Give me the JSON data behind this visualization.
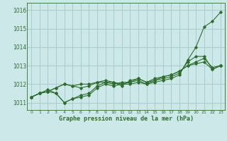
{
  "xlabel": "Graphe pression niveau de la mer (hPa)",
  "background_color": "#cce8e8",
  "grid_color": "#aacccc",
  "line_color": "#2d6e2d",
  "xlim": [
    -0.5,
    23.5
  ],
  "ylim": [
    1010.6,
    1016.4
  ],
  "yticks": [
    1011,
    1012,
    1013,
    1014,
    1015,
    1016
  ],
  "xticks": [
    0,
    1,
    2,
    3,
    4,
    5,
    6,
    7,
    8,
    9,
    10,
    11,
    12,
    13,
    14,
    15,
    16,
    17,
    18,
    19,
    20,
    21,
    22,
    23
  ],
  "series": [
    [
      1011.3,
      1011.5,
      1011.6,
      1011.5,
      1011.0,
      1011.2,
      1011.3,
      1011.4,
      1011.8,
      1012.0,
      1011.9,
      1012.0,
      1012.0,
      1012.1,
      1012.0,
      1012.1,
      1012.2,
      1012.3,
      1012.5,
      1013.3,
      1014.0,
      1015.1,
      1015.4,
      1015.9
    ],
    [
      1011.3,
      1011.5,
      1011.6,
      1011.8,
      1012.0,
      1011.9,
      1011.8,
      1011.9,
      1012.1,
      1012.1,
      1012.1,
      1012.0,
      1012.1,
      1012.2,
      1012.0,
      1012.2,
      1012.3,
      1012.4,
      1012.6,
      1013.2,
      1013.5,
      1013.5,
      1012.8,
      1013.0
    ],
    [
      1011.3,
      1011.5,
      1011.6,
      1011.8,
      1012.0,
      1011.9,
      1012.0,
      1012.0,
      1012.1,
      1012.2,
      1012.1,
      1011.9,
      1012.2,
      1012.3,
      1012.1,
      1012.3,
      1012.4,
      1012.5,
      1012.7,
      1013.0,
      1013.2,
      1013.4,
      1012.9,
      1013.0
    ],
    [
      1011.3,
      1011.5,
      1011.7,
      1011.5,
      1011.0,
      1011.2,
      1011.4,
      1011.5,
      1011.9,
      1012.1,
      1012.0,
      1012.1,
      1012.1,
      1012.3,
      1012.1,
      1012.2,
      1012.4,
      1012.5,
      1012.7,
      1013.0,
      1013.1,
      1013.2,
      1012.8,
      1013.0
    ]
  ]
}
